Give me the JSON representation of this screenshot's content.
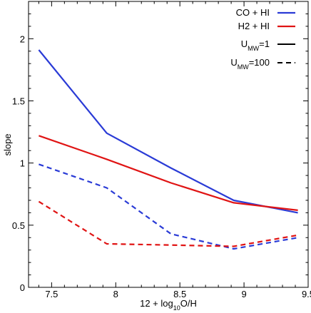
{
  "chart_data": {
    "type": "line",
    "xlabel": {
      "pre": "12 + log",
      "sub": "10",
      "post": "O/H"
    },
    "ylabel": "slope",
    "xlim": [
      7.32,
      9.5
    ],
    "ylim": [
      0,
      2.3
    ],
    "xticks": [
      7.5,
      8,
      8.5,
      9,
      9.5
    ],
    "yticks": [
      0,
      0.5,
      1,
      1.5,
      2
    ],
    "xtick_labels": [
      "7.5",
      "8",
      "8.5",
      "9",
      "9.5"
    ],
    "ytick_labels": [
      "0",
      "0.5",
      "1",
      "1.5",
      "2"
    ],
    "legend_position": "top-right",
    "colors": {
      "co_hi": "#2a3bd6",
      "h2_hi": "#e01414"
    },
    "legend": {
      "tracers": [
        {
          "label": "CO + HI",
          "color": "#2a3bd6"
        },
        {
          "label": "H2 + HI",
          "color": "#e01414"
        }
      ],
      "fields": [
        {
          "pre": "U",
          "sub": "MW",
          "post": "=1",
          "style": "solid"
        },
        {
          "pre": "U",
          "sub": "MW",
          "post": "=100",
          "style": "dashed"
        }
      ]
    },
    "series": [
      {
        "tracer": "CO + HI",
        "field": "UMW=1",
        "color": "#2a3bd6",
        "style": "solid",
        "x": [
          7.4,
          7.93,
          8.43,
          8.92,
          9.42
        ],
        "y": [
          1.91,
          1.24,
          0.96,
          0.7,
          0.6
        ]
      },
      {
        "tracer": "H2 + HI",
        "field": "UMW=1",
        "color": "#e01414",
        "style": "solid",
        "x": [
          7.4,
          7.93,
          8.43,
          8.92,
          9.42
        ],
        "y": [
          1.22,
          1.03,
          0.84,
          0.68,
          0.62
        ]
      },
      {
        "tracer": "CO + HI",
        "field": "UMW=100",
        "color": "#2a3bd6",
        "style": "dashed",
        "x": [
          7.4,
          7.93,
          8.43,
          8.92,
          9.42
        ],
        "y": [
          0.99,
          0.8,
          0.43,
          0.31,
          0.4
        ]
      },
      {
        "tracer": "H2 + HI",
        "field": "UMW=100",
        "color": "#e01414",
        "style": "dashed",
        "x": [
          7.4,
          7.93,
          8.43,
          8.92,
          9.42
        ],
        "y": [
          0.69,
          0.35,
          0.34,
          0.33,
          0.42
        ]
      }
    ]
  }
}
